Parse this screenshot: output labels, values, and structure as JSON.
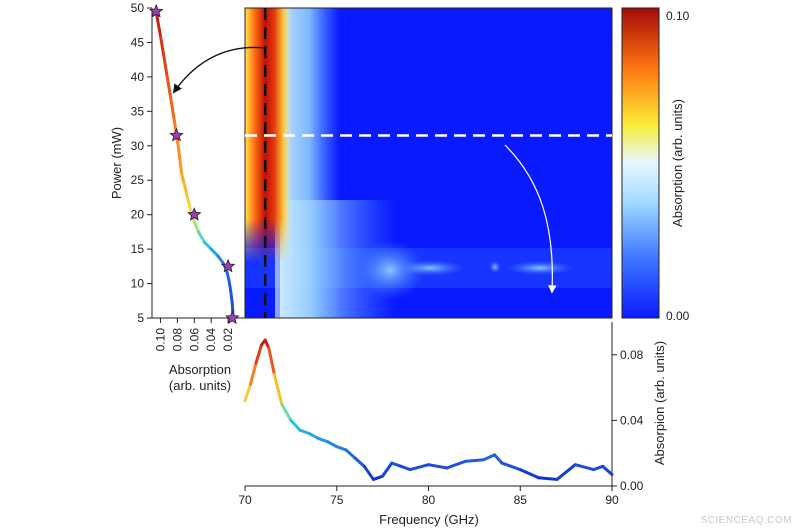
{
  "watermark": "SCIENCEAQ.COM",
  "chart_data": [
    {
      "id": "power-vs-absorption",
      "type": "line",
      "xlabel": "Absorption\n(arb. units)",
      "ylabel": "Power (mW)",
      "x_reversed": true,
      "xlim": [
        0.11,
        0.0
      ],
      "ylim": [
        5,
        50
      ],
      "xticks": [
        "0.10",
        "0.08",
        "0.06",
        "0.04",
        "0.02"
      ],
      "yticks": [
        "5",
        "10",
        "15",
        "20",
        "25",
        "30",
        "35",
        "40",
        "45",
        "50"
      ],
      "series": [
        {
          "x": [
            0.105,
            0.103,
            0.1,
            0.096,
            0.092,
            0.088,
            0.084,
            0.081,
            0.079,
            0.077,
            0.075,
            0.072,
            0.069,
            0.066,
            0.063,
            0.06,
            0.055,
            0.048,
            0.04,
            0.032,
            0.026,
            0.022,
            0.019,
            0.017,
            0.016,
            0.015,
            0.0145,
            0.014
          ],
          "y": [
            49.5,
            48,
            46,
            43,
            40,
            37,
            34,
            31.5,
            30,
            28,
            26,
            24.5,
            23,
            21.5,
            20,
            19,
            17.5,
            16,
            15,
            14,
            13,
            12,
            10.5,
            9,
            8,
            7,
            6,
            5
          ]
        }
      ],
      "markers": [
        {
          "x": 0.105,
          "y": 49.5
        },
        {
          "x": 0.081,
          "y": 31.5
        },
        {
          "x": 0.06,
          "y": 20
        },
        {
          "x": 0.02,
          "y": 12.5
        },
        {
          "x": 0.015,
          "y": 5
        }
      ]
    },
    {
      "id": "power-frequency-map",
      "type": "heatmap",
      "xlim": [
        70,
        90
      ],
      "ylim": [
        5,
        50
      ],
      "colorbar_label": "Absorption (arb. units)",
      "colorbar_ticks": [
        "0.00",
        "0.10"
      ],
      "crosshair": {
        "vertical_frequency_ghz": 71.1,
        "horizontal_power_mw": 31.5
      }
    },
    {
      "id": "absorption-spectrum",
      "type": "line",
      "xlabel": "Frequency (GHz)",
      "ylabel": "Absorpion (arb. units)",
      "xlim": [
        70,
        90
      ],
      "ylim": [
        0,
        0.1
      ],
      "xticks": [
        "70",
        "75",
        "80",
        "85",
        "90"
      ],
      "yticks": [
        "0.00",
        "0.04",
        "0.08"
      ],
      "series": [
        {
          "x": [
            70.0,
            70.3,
            70.6,
            70.9,
            71.1,
            71.3,
            71.6,
            72.0,
            72.5,
            73.0,
            73.5,
            74.0,
            74.5,
            75.0,
            75.5,
            76.0,
            76.5,
            77.0,
            77.5,
            78.0,
            78.5,
            79.0,
            80.0,
            81.0,
            82.0,
            83.0,
            83.6,
            84.0,
            85.0,
            86.0,
            87.0,
            88.0,
            89.0,
            89.5,
            90.0
          ],
          "y": [
            0.052,
            0.062,
            0.075,
            0.086,
            0.089,
            0.084,
            0.068,
            0.05,
            0.04,
            0.034,
            0.032,
            0.029,
            0.027,
            0.024,
            0.022,
            0.017,
            0.012,
            0.004,
            0.006,
            0.014,
            0.012,
            0.01,
            0.013,
            0.011,
            0.015,
            0.016,
            0.019,
            0.014,
            0.01,
            0.005,
            0.004,
            0.013,
            0.01,
            0.012,
            0.007
          ]
        }
      ]
    }
  ]
}
